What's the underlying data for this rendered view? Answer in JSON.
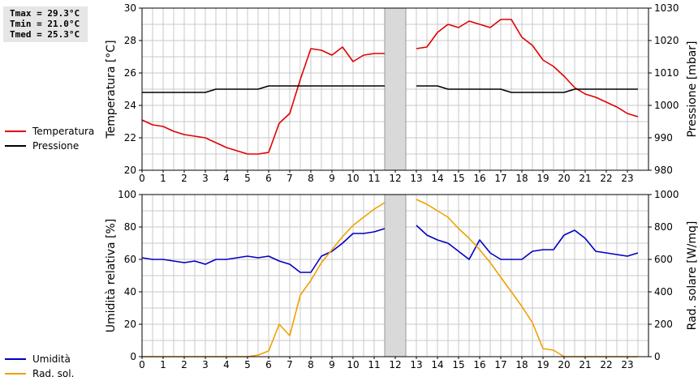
{
  "stats": {
    "tmax": "Tmax = 29.3°C",
    "tmin": "Tmin = 21.0°C",
    "tmed": "Tmed = 25.3°C"
  },
  "colors": {
    "temperature": "#e00000",
    "pressure": "#000000",
    "humidity": "#0000c0",
    "radiation": "#f0a000",
    "gap": "#d9d9d9",
    "grid": "#c8c8c8"
  },
  "chart_data": [
    {
      "type": "line",
      "xlim": [
        0,
        24
      ],
      "x_ticks": [
        0,
        1,
        2,
        3,
        4,
        5,
        6,
        7,
        8,
        9,
        10,
        11,
        12,
        13,
        14,
        15,
        16,
        17,
        18,
        19,
        20,
        21,
        22,
        23
      ],
      "grid": true,
      "gap": [
        11.5,
        12.5
      ],
      "left_axis": {
        "label": "Temperatura [°C]",
        "ylim": [
          20,
          30
        ],
        "ticks": [
          20,
          22,
          24,
          26,
          28,
          30
        ]
      },
      "right_axis": {
        "label": "Pressione [mbar]",
        "ylim": [
          980,
          1030
        ],
        "ticks": [
          980,
          990,
          1000,
          1010,
          1020,
          1030
        ]
      },
      "legend": [
        "Temperatura",
        "Pressione"
      ],
      "series": [
        {
          "name": "Temperatura",
          "axis": "left",
          "points": [
            [
              0,
              23.1
            ],
            [
              0.5,
              22.8
            ],
            [
              1,
              22.7
            ],
            [
              1.5,
              22.4
            ],
            [
              2,
              22.2
            ],
            [
              2.5,
              22.1
            ],
            [
              3,
              22.0
            ],
            [
              3.5,
              21.7
            ],
            [
              4,
              21.4
            ],
            [
              4.5,
              21.2
            ],
            [
              5,
              21.0
            ],
            [
              5.5,
              21.0
            ],
            [
              6,
              21.1
            ],
            [
              6.5,
              22.9
            ],
            [
              7,
              23.5
            ],
            [
              7.5,
              25.6
            ],
            [
              8,
              27.5
            ],
            [
              8.5,
              27.4
            ],
            [
              9,
              27.1
            ],
            [
              9.5,
              27.6
            ],
            [
              10,
              26.7
            ],
            [
              10.5,
              27.1
            ],
            [
              11,
              27.2
            ],
            [
              11.5,
              27.2
            ],
            [
              13,
              27.5
            ],
            [
              13.5,
              27.6
            ],
            [
              14,
              28.5
            ],
            [
              14.5,
              29.0
            ],
            [
              15,
              28.8
            ],
            [
              15.5,
              29.2
            ],
            [
              16,
              29.0
            ],
            [
              16.5,
              28.8
            ],
            [
              17,
              29.3
            ],
            [
              17.5,
              29.3
            ],
            [
              18,
              28.2
            ],
            [
              18.5,
              27.7
            ],
            [
              19,
              26.8
            ],
            [
              19.5,
              26.4
            ],
            [
              20,
              25.8
            ],
            [
              20.5,
              25.1
            ],
            [
              21,
              24.7
            ],
            [
              21.5,
              24.5
            ],
            [
              22,
              24.2
            ],
            [
              22.5,
              23.9
            ],
            [
              23,
              23.5
            ],
            [
              23.5,
              23.3
            ]
          ]
        },
        {
          "name": "Pressione",
          "axis": "right",
          "points": [
            [
              0,
              1004
            ],
            [
              3,
              1004
            ],
            [
              3.5,
              1005
            ],
            [
              5.5,
              1005
            ],
            [
              6,
              1006
            ],
            [
              11.5,
              1006
            ],
            [
              13,
              1006
            ],
            [
              14,
              1006
            ],
            [
              14.5,
              1005
            ],
            [
              17,
              1005
            ],
            [
              17.5,
              1004
            ],
            [
              20,
              1004
            ],
            [
              20.5,
              1005
            ],
            [
              23.5,
              1005
            ]
          ]
        }
      ]
    },
    {
      "type": "line",
      "xlim": [
        0,
        24
      ],
      "x_ticks": [
        0,
        1,
        2,
        3,
        4,
        5,
        6,
        7,
        8,
        9,
        10,
        11,
        12,
        13,
        14,
        15,
        16,
        17,
        18,
        19,
        20,
        21,
        22,
        23
      ],
      "grid": true,
      "gap": [
        11.5,
        12.5
      ],
      "left_axis": {
        "label": "Umidità relativa [%]",
        "ylim": [
          0,
          100
        ],
        "ticks": [
          0,
          20,
          40,
          60,
          80,
          100
        ]
      },
      "right_axis": {
        "label": "Rad. solare [W/mq]",
        "ylim": [
          0,
          1000
        ],
        "ticks": [
          0,
          200,
          400,
          600,
          800,
          1000
        ]
      },
      "legend": [
        "Umidità",
        "Rad. sol."
      ],
      "series": [
        {
          "name": "Umidità",
          "axis": "left",
          "points": [
            [
              0,
              61
            ],
            [
              0.5,
              60
            ],
            [
              1,
              60
            ],
            [
              1.5,
              59
            ],
            [
              2,
              58
            ],
            [
              2.5,
              59
            ],
            [
              3,
              57
            ],
            [
              3.5,
              60
            ],
            [
              4,
              60
            ],
            [
              4.5,
              61
            ],
            [
              5,
              62
            ],
            [
              5.5,
              61
            ],
            [
              6,
              62
            ],
            [
              6.5,
              59
            ],
            [
              7,
              57
            ],
            [
              7.5,
              52
            ],
            [
              8,
              52
            ],
            [
              8.5,
              62
            ],
            [
              9,
              65
            ],
            [
              9.5,
              70
            ],
            [
              10,
              76
            ],
            [
              10.5,
              76
            ],
            [
              11,
              77
            ],
            [
              11.5,
              79
            ],
            [
              13,
              81
            ],
            [
              13.5,
              75
            ],
            [
              14,
              72
            ],
            [
              14.5,
              70
            ],
            [
              15,
              65
            ],
            [
              15.5,
              60
            ],
            [
              16,
              72
            ],
            [
              16.5,
              64
            ],
            [
              17,
              60
            ],
            [
              17.5,
              60
            ],
            [
              18,
              60
            ],
            [
              18.5,
              65
            ],
            [
              19,
              66
            ],
            [
              19.5,
              66
            ],
            [
              20,
              75
            ],
            [
              20.5,
              78
            ],
            [
              21,
              73
            ],
            [
              21.5,
              65
            ],
            [
              22,
              64
            ],
            [
              22.5,
              63
            ],
            [
              23,
              62
            ],
            [
              23.5,
              64
            ]
          ]
        },
        {
          "name": "Rad. sol.",
          "axis": "right",
          "points": [
            [
              0,
              0
            ],
            [
              5,
              0
            ],
            [
              5.5,
              10
            ],
            [
              6,
              35
            ],
            [
              6.5,
              200
            ],
            [
              7,
              130
            ],
            [
              7.5,
              380
            ],
            [
              8,
              470
            ],
            [
              8.5,
              580
            ],
            [
              9,
              660
            ],
            [
              9.5,
              740
            ],
            [
              10,
              810
            ],
            [
              10.5,
              860
            ],
            [
              11,
              910
            ],
            [
              11.5,
              950
            ],
            [
              13,
              970
            ],
            [
              13.5,
              940
            ],
            [
              14,
              900
            ],
            [
              14.5,
              860
            ],
            [
              15,
              790
            ],
            [
              15.5,
              730
            ],
            [
              16,
              660
            ],
            [
              16.5,
              580
            ],
            [
              17,
              490
            ],
            [
              17.5,
              400
            ],
            [
              18,
              310
            ],
            [
              18.5,
              210
            ],
            [
              19,
              50
            ],
            [
              19.5,
              40
            ],
            [
              20,
              0
            ],
            [
              23.5,
              0
            ]
          ]
        }
      ]
    }
  ]
}
